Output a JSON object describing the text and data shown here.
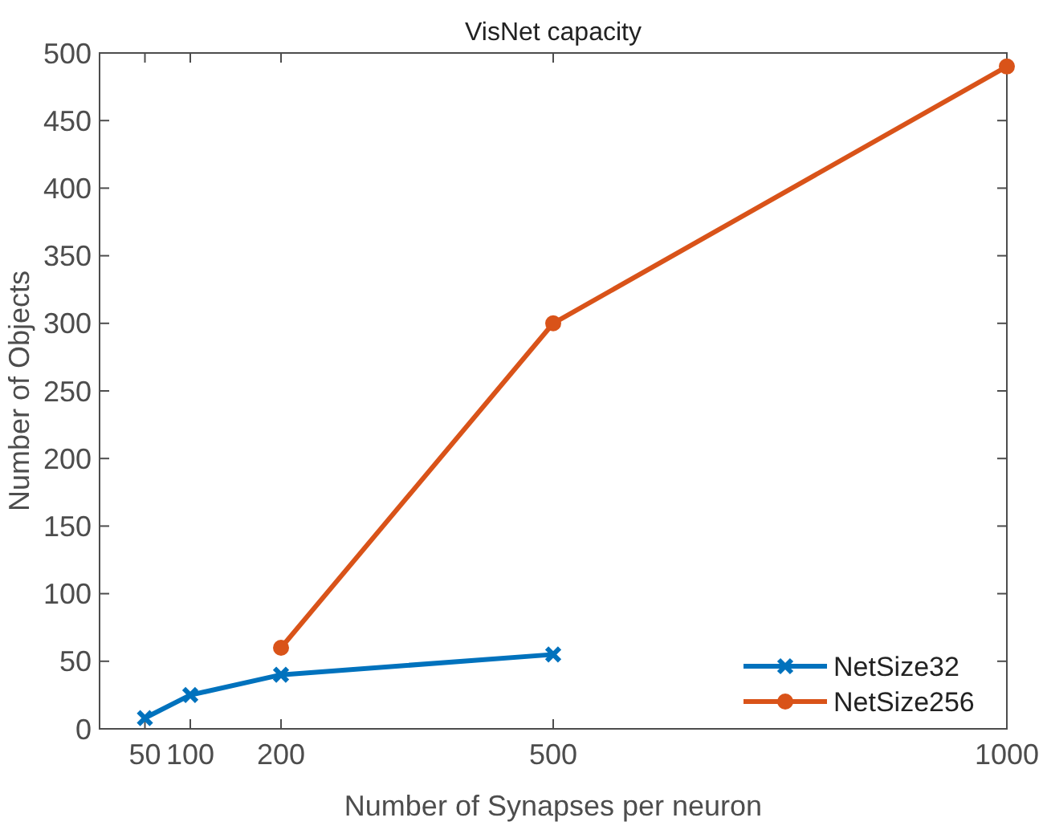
{
  "chart_data": {
    "type": "line",
    "title": "VisNet capacity",
    "xlabel": "Number of Synapses per neuron",
    "ylabel": "Number of Objects",
    "xlim": [
      0,
      1000
    ],
    "xticks": [
      50,
      100,
      200,
      500,
      1000
    ],
    "ylim": [
      0,
      500
    ],
    "yticks": [
      0,
      50,
      100,
      150,
      200,
      250,
      300,
      350,
      400,
      450,
      500
    ],
    "legend": "bottom right",
    "grid": false,
    "line_style": "solid",
    "series": [
      {
        "name": "NetSize32",
        "color": "#0072bd",
        "marker": "cross",
        "x": [
          50,
          100,
          200,
          500
        ],
        "values": [
          8,
          25,
          40,
          55
        ]
      },
      {
        "name": "NetSize256",
        "color": "#d95319",
        "marker": "circle",
        "x": [
          200,
          500,
          1000
        ],
        "values": [
          60,
          300,
          490
        ]
      }
    ]
  }
}
